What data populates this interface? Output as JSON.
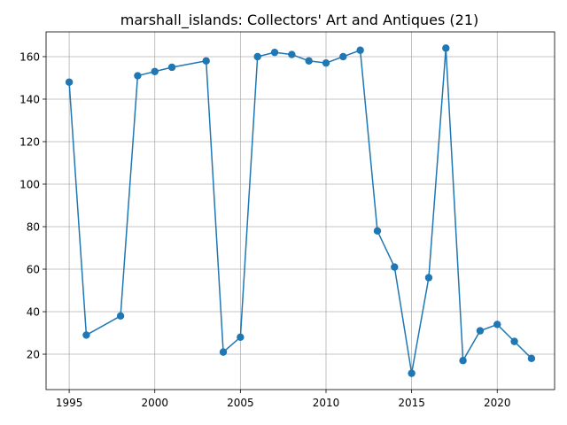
{
  "chart_data": {
    "type": "line",
    "title": "marshall_islands: Collectors' Art and Antiques (21)",
    "xlabel": "",
    "ylabel": "",
    "xlim": [
      1993.65,
      2023.35
    ],
    "ylim": [
      3.35,
      171.65
    ],
    "xticks": [
      1995,
      2000,
      2005,
      2010,
      2015,
      2020
    ],
    "yticks": [
      20,
      40,
      60,
      80,
      100,
      120,
      140,
      160
    ],
    "grid": true,
    "series": [
      {
        "color": "#1f77b4",
        "marker": "circle",
        "x": [
          1995,
          1996,
          1998,
          1999,
          2000,
          2001,
          2003,
          2004,
          2005,
          2006,
          2007,
          2008,
          2009,
          2010,
          2011,
          2012,
          2013,
          2014,
          2015,
          2016,
          2017,
          2018,
          2019,
          2020,
          2021,
          2022
        ],
        "y": [
          148,
          29,
          38,
          151,
          153,
          155,
          158,
          21,
          28,
          160,
          162,
          161,
          158,
          157,
          160,
          163,
          78,
          61,
          11,
          56,
          164,
          17,
          31,
          34,
          26,
          18
        ]
      }
    ]
  }
}
